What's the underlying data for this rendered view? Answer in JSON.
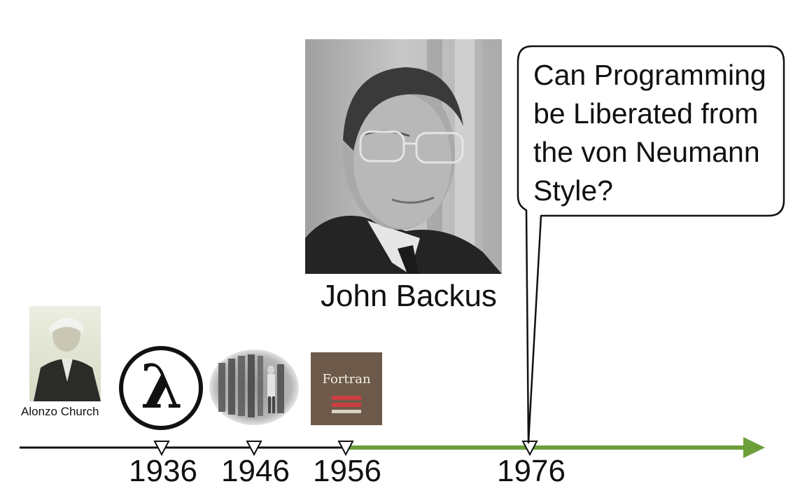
{
  "timeline": {
    "years": [
      "1936",
      "1946",
      "1956",
      "1976"
    ],
    "axis_color": "#111111",
    "highlight_color": "#6a9f3a"
  },
  "figures": {
    "church": {
      "caption": "Alonzo Church"
    },
    "lambda": {
      "symbol": "λ"
    },
    "eniac": {},
    "fortran": {
      "title": "Fortran"
    },
    "backus": {
      "caption": "John Backus"
    }
  },
  "speech_bubble": {
    "text": "Can Programming be Liberated from the von Neumann Style?"
  }
}
